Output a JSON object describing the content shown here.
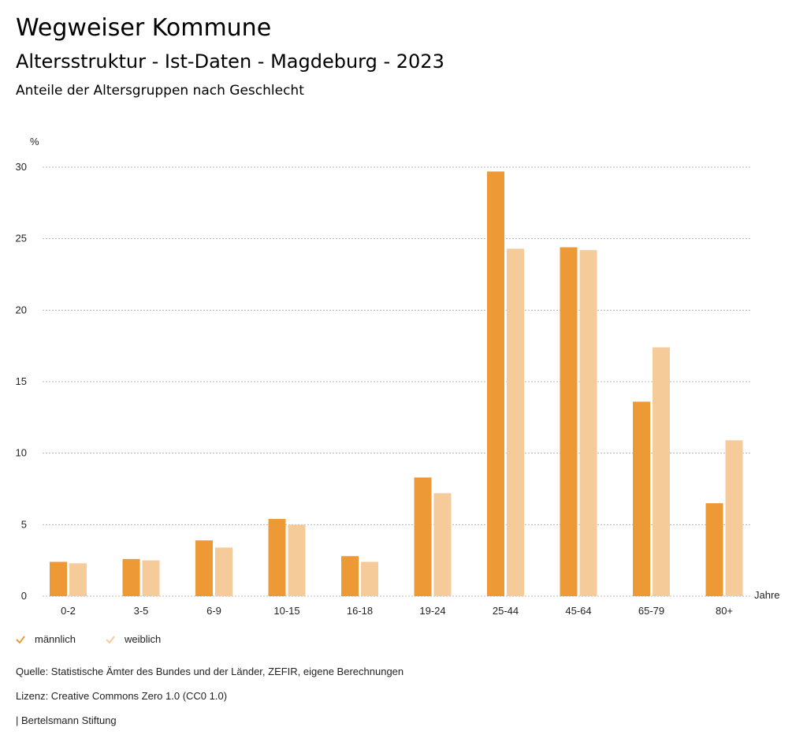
{
  "header": {
    "title": "Wegweiser Kommune",
    "subtitle": "Altersstruktur - Ist-Daten - Magdeburg - 2023",
    "description": "Anteile der Altersgruppen nach Geschlecht"
  },
  "chart_data": {
    "type": "bar",
    "title": "Anteile der Altersgruppen nach Geschlecht",
    "ylabel": "%",
    "xlabel": "Jahre",
    "ylim": [
      0,
      30
    ],
    "yticks": [
      "0",
      "5",
      "10",
      "15",
      "20",
      "25",
      "30"
    ],
    "grid": true,
    "legend_position": "bottom-left",
    "categories": [
      "0-2",
      "3-5",
      "6-9",
      "10-15",
      "16-18",
      "19-24",
      "25-44",
      "45-64",
      "65-79",
      "80+"
    ],
    "series": [
      {
        "name": "männlich",
        "color": "#ED9936",
        "values": [
          2.4,
          2.6,
          3.9,
          5.4,
          2.8,
          8.3,
          29.7,
          24.4,
          13.6,
          6.5
        ]
      },
      {
        "name": "weiblich",
        "color": "#F5CB9A",
        "values": [
          2.3,
          2.5,
          3.4,
          5.0,
          2.4,
          7.2,
          24.3,
          24.2,
          17.4,
          10.9
        ]
      }
    ]
  },
  "footer": {
    "source": "Quelle: Statistische Ämter des Bundes und der Länder, ZEFIR, eigene Berechnungen",
    "license": "Lizenz: Creative Commons Zero 1.0 (CC0 1.0)",
    "credit": "| Bertelsmann Stiftung"
  }
}
